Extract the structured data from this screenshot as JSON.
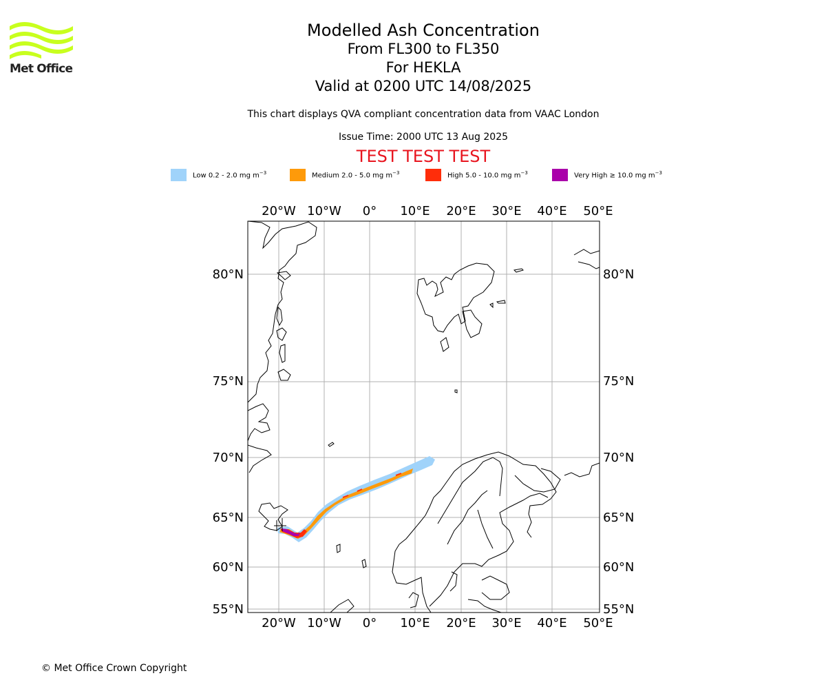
{
  "header": {
    "logo_text": "Met Office",
    "title": "Modelled Ash Concentration",
    "levels": "From FL300 to FL350",
    "volcano": "For HEKLA",
    "valid": "Valid at 0200 UTC 14/08/2025",
    "description": "This chart displays QVA compliant concentration data from VAAC London",
    "issue_time": "Issue Time: 2000 UTC 13 Aug 2025",
    "test_banner": "TEST TEST TEST"
  },
  "legend": [
    {
      "label": "Low 0.2 - 2.0 mg m",
      "exp": "−3",
      "color": "#a0d3fa"
    },
    {
      "label": "Medium 2.0 - 5.0 mg m",
      "exp": "−3",
      "color": "#fe9a0a"
    },
    {
      "label": "High 5.0 - 10.0 mg m",
      "exp": "−3",
      "color": "#ff2d0a"
    },
    {
      "label": "Very High  ≥  10.0 mg m",
      "exp": "−3",
      "color": "#aa00aa"
    }
  ],
  "map": {
    "lon_labels": [
      "20°W",
      "10°W",
      "0°",
      "10°E",
      "20°E",
      "30°E",
      "40°E",
      "50°E"
    ],
    "lat_labels": [
      "80°N",
      "75°N",
      "70°N",
      "65°N",
      "60°N",
      "55°N"
    ],
    "colors": {
      "coast": "#000000",
      "grid": "#b0b0b0"
    }
  },
  "footer": {
    "copyright": "© Met Office Crown Copyright"
  }
}
